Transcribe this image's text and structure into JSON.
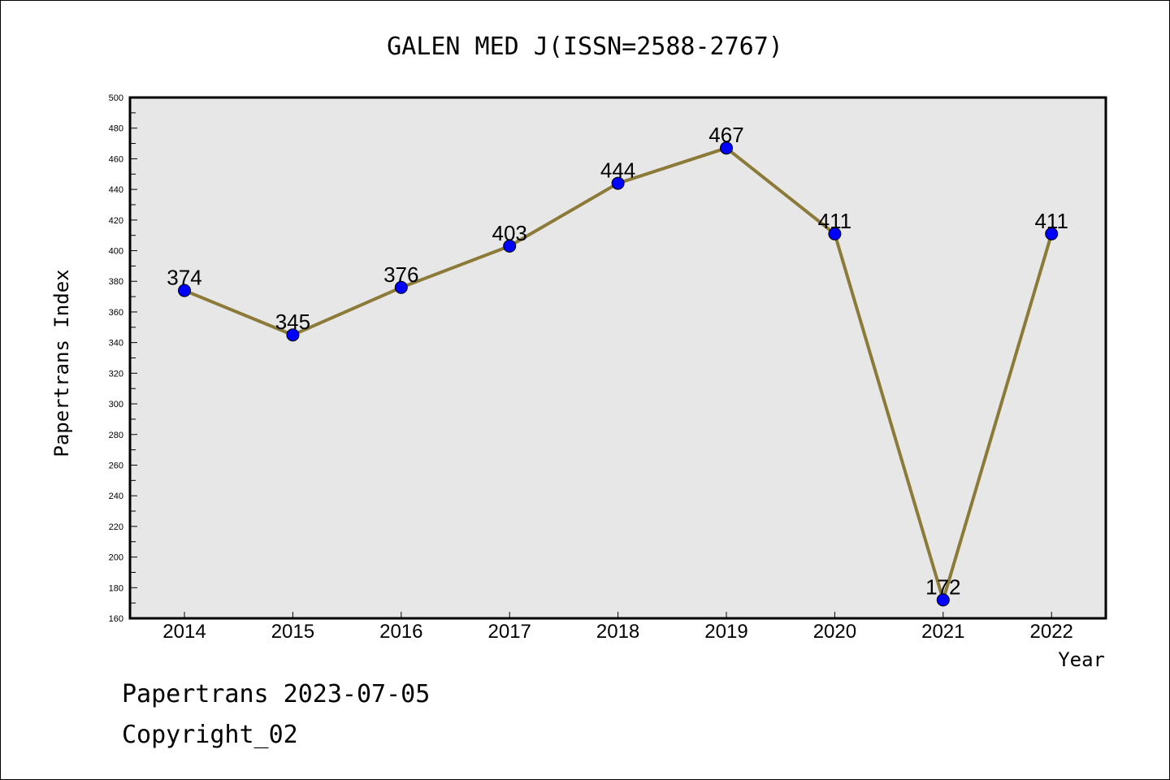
{
  "chart_data": {
    "type": "line",
    "title": "GALEN MED J(ISSN=2588-2767)",
    "xlabel": "Year",
    "ylabel": "Papertrans Index",
    "categories": [
      "2014",
      "2015",
      "2016",
      "2017",
      "2018",
      "2019",
      "2020",
      "2021",
      "2022"
    ],
    "series": [
      {
        "values": [
          374,
          345,
          376,
          403,
          444,
          467,
          411,
          172,
          411
        ]
      }
    ],
    "ylim": [
      160,
      500
    ],
    "ytick_step": 20,
    "grid": false,
    "colors": {
      "line": "#8b7a38",
      "marker": "#0000ff",
      "plot_background": "#e7e7e7"
    }
  },
  "footer": {
    "line1": "Papertrans 2023-07-05",
    "line2": "Copyright_02"
  }
}
